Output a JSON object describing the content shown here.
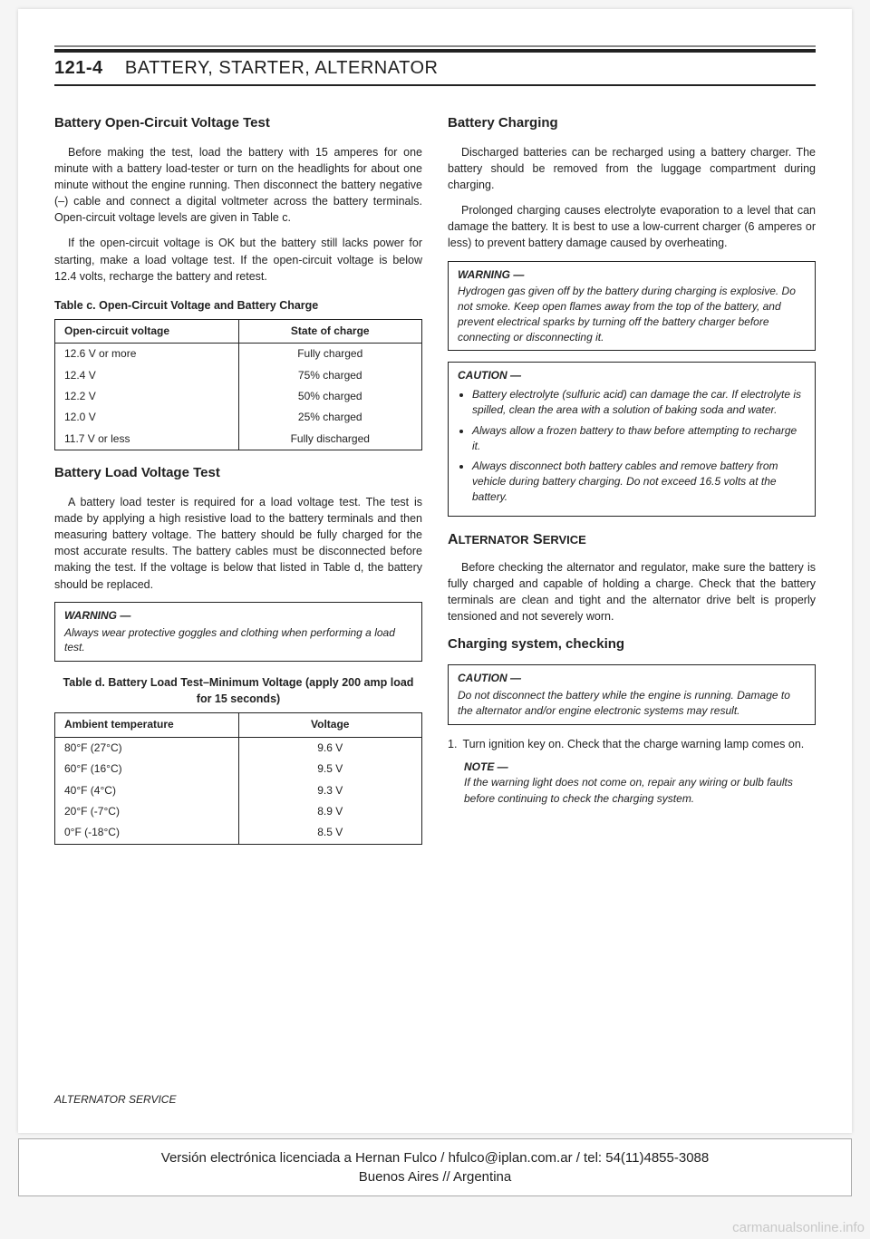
{
  "page_number": "121-4",
  "page_title": "BATTERY, STARTER, ALTERNATOR",
  "left": {
    "h_open_circuit": "Battery Open-Circuit Voltage Test",
    "p_open_1": "Before making the test, load the battery with 15 amperes for one minute with a battery load-tester or turn on the headlights for about one minute without the engine running. Then disconnect the battery negative (–) cable and connect a digital voltmeter across the battery terminals. Open-circuit voltage levels are given in Table c.",
    "p_open_2": "If the open-circuit voltage is OK but the battery still lacks power for starting, make a load voltage test. If the open-circuit voltage is below 12.4 volts, recharge the battery and retest.",
    "table_c_caption": "Table c. Open-Circuit Voltage and Battery Charge",
    "table_c": {
      "columns": [
        "Open-circuit voltage",
        "State of charge"
      ],
      "rows": [
        [
          "12.6 V or more",
          "Fully charged"
        ],
        [
          "12.4 V",
          "75% charged"
        ],
        [
          "12.2 V",
          "50% charged"
        ],
        [
          "12.0 V",
          "25% charged"
        ],
        [
          "11.7 V or less",
          "Fully discharged"
        ]
      ]
    },
    "h_load": "Battery Load Voltage Test",
    "p_load_1": "A battery load tester is required for a load voltage test. The test is made by applying a high resistive load to the battery terminals and then measuring battery voltage. The battery should be fully charged for the most accurate results. The battery cables must be disconnected before making the test. If the voltage is below that listed in Table d, the battery should be replaced.",
    "warning_load_label": "WARNING —",
    "warning_load_body": "Always wear protective goggles and clothing when performing a load test.",
    "table_d_caption": "Table d. Battery Load Test–Minimum Voltage (apply 200 amp load for 15 seconds)",
    "table_d": {
      "columns": [
        "Ambient temperature",
        "Voltage"
      ],
      "rows": [
        [
          "80°F (27°C)",
          "9.6 V"
        ],
        [
          "60°F (16°C)",
          "9.5 V"
        ],
        [
          "40°F (4°C)",
          "9.3 V"
        ],
        [
          "20°F (-7°C)",
          "8.9 V"
        ],
        [
          "0°F (-18°C)",
          "8.5 V"
        ]
      ]
    }
  },
  "right": {
    "h_charging": "Battery Charging",
    "p_chg_1": "Discharged batteries can be recharged using a battery charger. The battery should be removed from the luggage compartment during charging.",
    "p_chg_2": "Prolonged charging causes electrolyte evaporation to a level that can damage the battery. It is best to use a low-current charger (6 amperes or less) to prevent battery damage caused by overheating.",
    "warning_chg_label": "WARNING —",
    "warning_chg_body": "Hydrogen gas given off by the battery during charging is explosive. Do not smoke. Keep open flames away from the top of the battery, and prevent electrical sparks by turning off the battery charger before connecting or disconnecting it.",
    "caution_chg_label": "CAUTION —",
    "caution_chg_items": [
      "Battery electrolyte (sulfuric acid) can damage the car. If electrolyte is spilled, clean the area with a solution of baking soda and water.",
      "Always allow a frozen battery to thaw before attempting to recharge it.",
      "Always disconnect both battery cables and remove battery from vehicle during battery charging. Do not exceed 16.5 volts at the battery."
    ],
    "h_alternator": "ALTERNATOR SERVICE",
    "p_alt_1": "Before checking the alternator and regulator, make sure the battery is fully charged and capable of holding a charge. Check that the battery terminals are clean and tight and the alternator drive belt is properly tensioned and not severely worn.",
    "h_chgsys": "Charging system, checking",
    "caution_sys_label": "CAUTION —",
    "caution_sys_body": "Do not disconnect the battery while the engine is running. Damage to the alternator and/or engine electronic systems may result.",
    "step1_num": "1.",
    "step1_body": "Turn ignition key on. Check that the charge warning lamp comes on.",
    "note_label": "NOTE —",
    "note_body": "If the warning light does not come on, repair any wiring or bulb faults before continuing to check the charging system."
  },
  "footer_section": "ALTERNATOR SERVICE",
  "license_line1": "Versión electrónica licenciada a Hernan Fulco / hfulco@iplan.com.ar / tel: 54(11)4855-3088",
  "license_line2": "Buenos Aires // Argentina",
  "watermark": "carmanualsonline.info"
}
